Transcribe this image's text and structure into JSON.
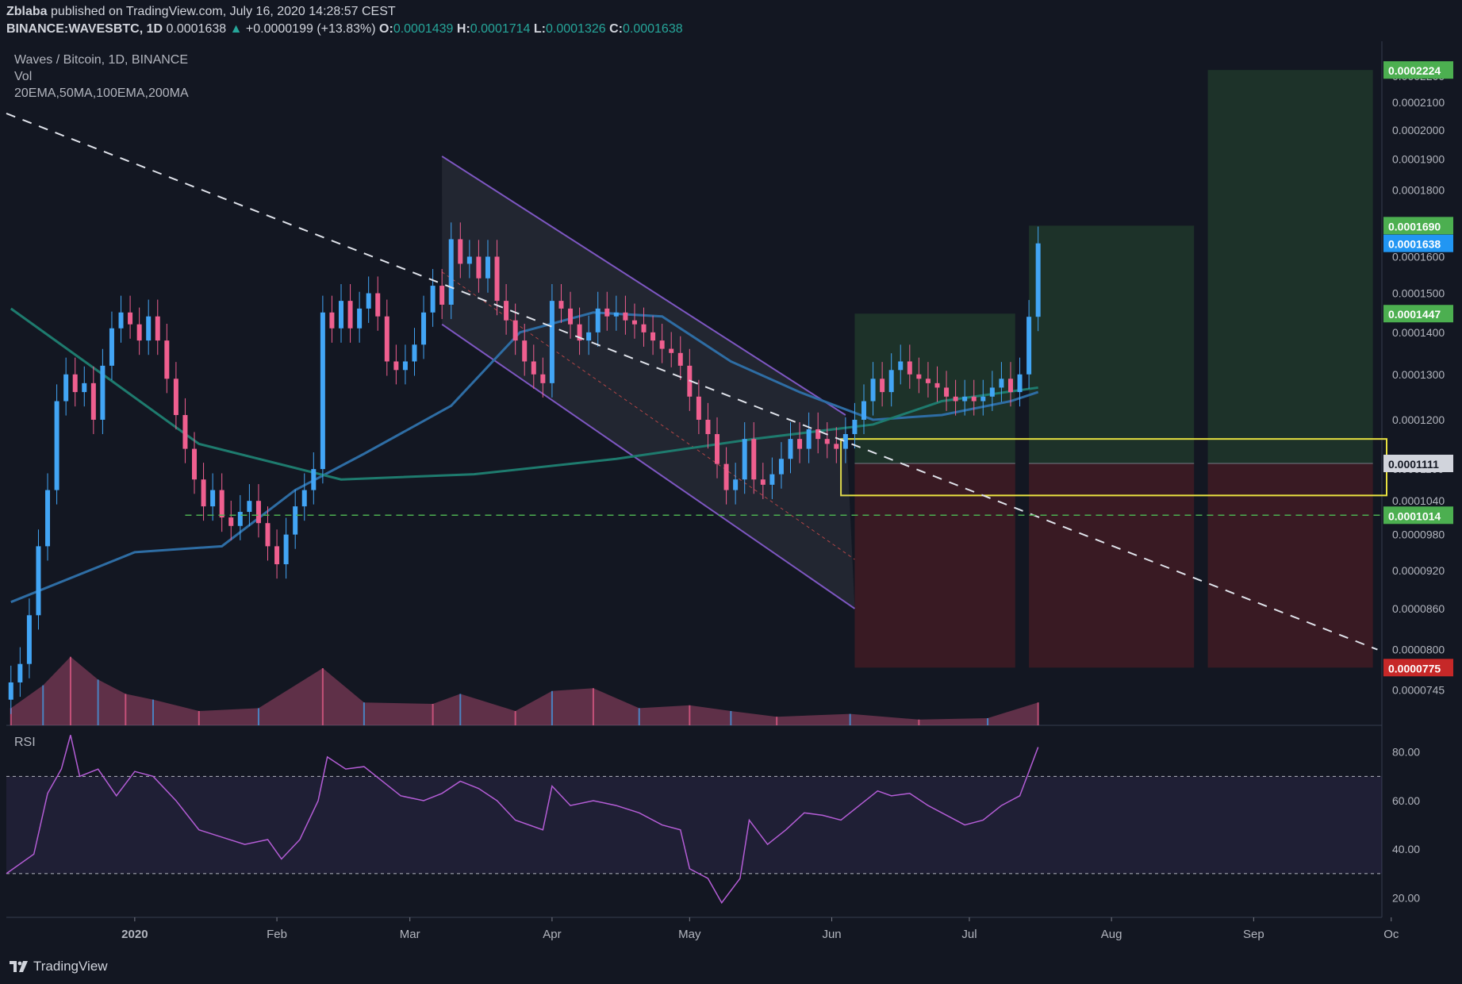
{
  "header": {
    "author": "Zblaba",
    "published": "published on TradingView.com, July 16, 2020 14:28:57 CEST",
    "symbol": "BINANCE:WAVESBTC, 1D",
    "last": "0.0001638",
    "arrow": "▲",
    "change": "+0.0000199 (+13.83%)",
    "o_label": "O:",
    "o_value": "0.0001439",
    "h_label": "H:",
    "h_value": "0.0001714",
    "l_label": "L:",
    "l_value": "0.0001326",
    "c_label": "C:",
    "c_value": "0.0001638"
  },
  "legend": {
    "title": "Waves / Bitcoin, 1D, BINANCE",
    "vol": "Vol",
    "ma": "20EMA,50MA,100EMA,200MA",
    "rsi": "RSI"
  },
  "footer": {
    "brand": "TradingView"
  },
  "colors": {
    "background": "#131722",
    "up": "#42a5f5",
    "down": "#ef5f8f",
    "ma_blue": "#2e6da4",
    "ma_teal": "#1e7b6e",
    "channel": "#7e57c2",
    "rsi": "#b45dd6",
    "zone": "#e9e240",
    "support": "#4caf50",
    "target_green": "#4caf50",
    "stop_red": "#c62828",
    "last_price": "#2196f3"
  },
  "chart_data": {
    "type": "candlestick",
    "symbol": "BINANCE:WAVESBTC",
    "interval": "1D",
    "x_range": [
      "2019-12-04",
      "2020-09-30"
    ],
    "ylim": [
      7e-05,
      0.000232
    ],
    "y_scale": "log",
    "y_ticks": [
      "0.0002200",
      "0.0002100",
      "0.0002000",
      "0.0001900",
      "0.0001800",
      "0.0001600",
      "0.0001500",
      "0.0001400",
      "0.0001300",
      "0.0001200",
      "0.0001100",
      "0.0001040",
      "0.0000980",
      "0.0000920",
      "0.0000860",
      "0.0000800",
      "0.0000745"
    ],
    "x_ticks": [
      {
        "date": "2020-01-01",
        "label": "2020"
      },
      {
        "date": "2020-02-01",
        "label": "Feb"
      },
      {
        "date": "2020-03-01",
        "label": "Mar"
      },
      {
        "date": "2020-04-01",
        "label": "Apr"
      },
      {
        "date": "2020-05-01",
        "label": "May"
      },
      {
        "date": "2020-06-01",
        "label": "Jun"
      },
      {
        "date": "2020-07-01",
        "label": "Jul"
      },
      {
        "date": "2020-08-01",
        "label": "Aug"
      },
      {
        "date": "2020-09-01",
        "label": "Sep"
      },
      {
        "date": "2020-10-01",
        "label": "Oc"
      }
    ],
    "candles": [
      {
        "date": "2019-12-05",
        "c": 7.55e-05
      },
      {
        "date": "2019-12-07",
        "c": 7.8e-05
      },
      {
        "date": "2019-12-09",
        "c": 8.5e-05
      },
      {
        "date": "2019-12-11",
        "c": 9.6e-05
      },
      {
        "date": "2019-12-13",
        "c": 0.000106
      },
      {
        "date": "2019-12-15",
        "c": 0.000124
      },
      {
        "date": "2019-12-17",
        "c": 0.00013
      },
      {
        "date": "2019-12-19",
        "c": 0.000126
      },
      {
        "date": "2019-12-21",
        "c": 0.000128
      },
      {
        "date": "2019-12-23",
        "c": 0.00012
      },
      {
        "date": "2019-12-25",
        "c": 0.000132
      },
      {
        "date": "2019-12-27",
        "c": 0.000141
      },
      {
        "date": "2019-12-29",
        "c": 0.000145
      },
      {
        "date": "2019-12-31",
        "c": 0.000142
      },
      {
        "date": "2020-01-02",
        "c": 0.000138
      },
      {
        "date": "2020-01-04",
        "c": 0.000144
      },
      {
        "date": "2020-01-06",
        "c": 0.000138
      },
      {
        "date": "2020-01-08",
        "c": 0.000129
      },
      {
        "date": "2020-01-10",
        "c": 0.000121
      },
      {
        "date": "2020-01-12",
        "c": 0.000114
      },
      {
        "date": "2020-01-14",
        "c": 0.000108
      },
      {
        "date": "2020-01-16",
        "c": 0.000103
      },
      {
        "date": "2020-01-18",
        "c": 0.000106
      },
      {
        "date": "2020-01-20",
        "c": 0.000101
      },
      {
        "date": "2020-01-22",
        "c": 9.95e-05
      },
      {
        "date": "2020-01-24",
        "c": 0.000102
      },
      {
        "date": "2020-01-26",
        "c": 0.000104
      },
      {
        "date": "2020-01-28",
        "c": 0.0001
      },
      {
        "date": "2020-01-30",
        "c": 9.6e-05
      },
      {
        "date": "2020-02-01",
        "c": 9.3e-05
      },
      {
        "date": "2020-02-03",
        "c": 9.8e-05
      },
      {
        "date": "2020-02-05",
        "c": 0.000103
      },
      {
        "date": "2020-02-07",
        "c": 0.000106
      },
      {
        "date": "2020-02-09",
        "c": 0.00011
      },
      {
        "date": "2020-02-11",
        "c": 0.000145
      },
      {
        "date": "2020-02-13",
        "c": 0.000141
      },
      {
        "date": "2020-02-15",
        "c": 0.000148
      },
      {
        "date": "2020-02-17",
        "c": 0.000141
      },
      {
        "date": "2020-02-19",
        "c": 0.000146
      },
      {
        "date": "2020-02-21",
        "c": 0.00015
      },
      {
        "date": "2020-02-23",
        "c": 0.000144
      },
      {
        "date": "2020-02-25",
        "c": 0.000133
      },
      {
        "date": "2020-02-27",
        "c": 0.000131
      },
      {
        "date": "2020-02-29",
        "c": 0.000133
      },
      {
        "date": "2020-03-02",
        "c": 0.000137
      },
      {
        "date": "2020-03-04",
        "c": 0.000145
      },
      {
        "date": "2020-03-06",
        "c": 0.000152
      },
      {
        "date": "2020-03-08",
        "c": 0.000147
      },
      {
        "date": "2020-03-10",
        "c": 0.000165
      },
      {
        "date": "2020-03-12",
        "c": 0.000158
      },
      {
        "date": "2020-03-14",
        "c": 0.00016
      },
      {
        "date": "2020-03-16",
        "c": 0.000154
      },
      {
        "date": "2020-03-18",
        "c": 0.00016
      },
      {
        "date": "2020-03-20",
        "c": 0.000148
      },
      {
        "date": "2020-03-22",
        "c": 0.000143
      },
      {
        "date": "2020-03-24",
        "c": 0.000138
      },
      {
        "date": "2020-03-26",
        "c": 0.000133
      },
      {
        "date": "2020-03-28",
        "c": 0.00013
      },
      {
        "date": "2020-03-30",
        "c": 0.000128
      },
      {
        "date": "2020-04-01",
        "c": 0.000148
      },
      {
        "date": "2020-04-03",
        "c": 0.000146
      },
      {
        "date": "2020-04-05",
        "c": 0.000142
      },
      {
        "date": "2020-04-07",
        "c": 0.000138
      },
      {
        "date": "2020-04-09",
        "c": 0.00014
      },
      {
        "date": "2020-04-11",
        "c": 0.000146
      },
      {
        "date": "2020-04-13",
        "c": 0.000144
      },
      {
        "date": "2020-04-15",
        "c": 0.000145
      },
      {
        "date": "2020-04-17",
        "c": 0.000143
      },
      {
        "date": "2020-04-19",
        "c": 0.000142
      },
      {
        "date": "2020-04-21",
        "c": 0.00014
      },
      {
        "date": "2020-04-23",
        "c": 0.000138
      },
      {
        "date": "2020-04-25",
        "c": 0.000136
      },
      {
        "date": "2020-04-27",
        "c": 0.000135
      },
      {
        "date": "2020-04-29",
        "c": 0.000132
      },
      {
        "date": "2020-05-01",
        "c": 0.000125
      },
      {
        "date": "2020-05-03",
        "c": 0.00012
      },
      {
        "date": "2020-05-05",
        "c": 0.000117
      },
      {
        "date": "2020-05-07",
        "c": 0.000111
      },
      {
        "date": "2020-05-09",
        "c": 0.000106
      },
      {
        "date": "2020-05-11",
        "c": 0.000108
      },
      {
        "date": "2020-05-13",
        "c": 0.000116
      },
      {
        "date": "2020-05-15",
        "c": 0.000108
      },
      {
        "date": "2020-05-17",
        "c": 0.000107
      },
      {
        "date": "2020-05-19",
        "c": 0.000109
      },
      {
        "date": "2020-05-21",
        "c": 0.000112
      },
      {
        "date": "2020-05-23",
        "c": 0.000116
      },
      {
        "date": "2020-05-25",
        "c": 0.000114
      },
      {
        "date": "2020-05-27",
        "c": 0.000118
      },
      {
        "date": "2020-05-29",
        "c": 0.000116
      },
      {
        "date": "2020-05-31",
        "c": 0.000115
      },
      {
        "date": "2020-06-02",
        "c": 0.000114
      },
      {
        "date": "2020-06-04",
        "c": 0.000117
      },
      {
        "date": "2020-06-06",
        "c": 0.00012
      },
      {
        "date": "2020-06-08",
        "c": 0.000124
      },
      {
        "date": "2020-06-10",
        "c": 0.000129
      },
      {
        "date": "2020-06-12",
        "c": 0.000126
      },
      {
        "date": "2020-06-14",
        "c": 0.000131
      },
      {
        "date": "2020-06-16",
        "c": 0.000133
      },
      {
        "date": "2020-06-18",
        "c": 0.00013
      },
      {
        "date": "2020-06-20",
        "c": 0.000129
      },
      {
        "date": "2020-06-22",
        "c": 0.000128
      },
      {
        "date": "2020-06-24",
        "c": 0.000127
      },
      {
        "date": "2020-06-26",
        "c": 0.000125
      },
      {
        "date": "2020-06-28",
        "c": 0.000124
      },
      {
        "date": "2020-06-30",
        "c": 0.000125
      },
      {
        "date": "2020-07-02",
        "c": 0.000124
      },
      {
        "date": "2020-07-04",
        "c": 0.000125
      },
      {
        "date": "2020-07-06",
        "c": 0.000127
      },
      {
        "date": "2020-07-08",
        "c": 0.000129
      },
      {
        "date": "2020-07-10",
        "c": 0.000126
      },
      {
        "date": "2020-07-12",
        "c": 0.00013
      },
      {
        "date": "2020-07-14",
        "c": 0.0001439
      },
      {
        "date": "2020-07-16",
        "c": 0.0001638
      }
    ],
    "moving_averages": [
      {
        "name": "50MA",
        "points": [
          [
            "2019-12-05",
            8.7e-05
          ],
          [
            "2020-01-01",
            9.5e-05
          ],
          [
            "2020-01-20",
            9.6e-05
          ],
          [
            "2020-02-05",
            0.000106
          ],
          [
            "2020-02-20",
            0.000113
          ],
          [
            "2020-03-10",
            0.000123
          ],
          [
            "2020-03-25",
            0.00014
          ],
          [
            "2020-04-10",
            0.000145
          ],
          [
            "2020-04-25",
            0.000144
          ],
          [
            "2020-05-10",
            0.000133
          ],
          [
            "2020-05-25",
            0.000126
          ],
          [
            "2020-06-10",
            0.00012
          ],
          [
            "2020-06-25",
            0.000121
          ],
          [
            "2020-07-10",
            0.000124
          ],
          [
            "2020-07-16",
            0.000126
          ]
        ]
      },
      {
        "name": "200MA",
        "points": [
          [
            "2019-12-05",
            0.000146
          ],
          [
            "2019-12-25",
            0.00013
          ],
          [
            "2020-01-15",
            0.000115
          ],
          [
            "2020-02-15",
            0.000108
          ],
          [
            "2020-03-15",
            0.000109
          ],
          [
            "2020-04-15",
            0.000112
          ],
          [
            "2020-05-15",
            0.000116
          ],
          [
            "2020-06-10",
            0.000119
          ],
          [
            "2020-06-25",
            0.000124
          ],
          [
            "2020-07-16",
            0.000127
          ]
        ]
      }
    ],
    "annotations": {
      "trendline": [
        [
          "2019-12-04",
          0.000206
        ],
        [
          "2020-09-28",
          8e-05
        ]
      ],
      "channel_upper": [
        [
          "2020-03-08",
          0.000191
        ],
        [
          "2020-06-04",
          0.000121
        ]
      ],
      "channel_lower": [
        [
          "2020-03-08",
          0.000142
        ],
        [
          "2020-06-06",
          8.6e-05
        ]
      ],
      "support_line": 0.0001014,
      "buy_zone": {
        "x": [
          "2020-06-03",
          "2020-09-30"
        ],
        "y": [
          0.000105,
          0.000116
        ]
      },
      "positions": [
        {
          "x": [
            "2020-06-06",
            "2020-07-11"
          ],
          "entry": 0.0001111,
          "target": 0.0001447,
          "stop": 7.75e-05
        },
        {
          "x": [
            "2020-07-14",
            "2020-08-19"
          ],
          "entry": 0.0001111,
          "target": 0.000169,
          "stop": 7.75e-05
        },
        {
          "x": [
            "2020-08-22",
            "2020-09-27"
          ],
          "entry": 0.0001111,
          "target": 0.0002224,
          "stop": 7.75e-05
        }
      ]
    },
    "price_labels": [
      {
        "value": 0.0002224,
        "text": "0.0002224",
        "color": "#4caf50"
      },
      {
        "value": 0.000169,
        "text": "0.0001690",
        "color": "#4caf50"
      },
      {
        "value": 0.0001638,
        "text": "0.0001638",
        "color": "#2196f3"
      },
      {
        "value": 0.0001447,
        "text": "0.0001447",
        "color": "#4caf50"
      },
      {
        "value": 0.0001111,
        "text": "0.0001111",
        "color": "#d1d4dc"
      },
      {
        "value": 0.0001014,
        "text": "0.0001014",
        "color": "#4caf50"
      },
      {
        "value": 7.75e-05,
        "text": "0.0000775",
        "color": "#c62828"
      }
    ],
    "rsi": {
      "ticks": [
        "80.00",
        "60.00",
        "40.00",
        "20.00"
      ],
      "ylim": [
        12,
        91
      ],
      "overbought": 70,
      "oversold": 30,
      "points": [
        [
          "2019-12-04",
          30
        ],
        [
          "2019-12-10",
          38
        ],
        [
          "2019-12-13",
          63
        ],
        [
          "2019-12-16",
          73
        ],
        [
          "2019-12-18",
          87
        ],
        [
          "2019-12-20",
          70
        ],
        [
          "2019-12-24",
          73
        ],
        [
          "2019-12-28",
          62
        ],
        [
          "2020-01-01",
          72
        ],
        [
          "2020-01-05",
          70
        ],
        [
          "2020-01-10",
          60
        ],
        [
          "2020-01-15",
          48
        ],
        [
          "2020-01-20",
          45
        ],
        [
          "2020-01-25",
          42
        ],
        [
          "2020-01-30",
          44
        ],
        [
          "2020-02-02",
          36
        ],
        [
          "2020-02-06",
          44
        ],
        [
          "2020-02-10",
          60
        ],
        [
          "2020-02-12",
          78
        ],
        [
          "2020-02-16",
          73
        ],
        [
          "2020-02-20",
          74
        ],
        [
          "2020-02-24",
          68
        ],
        [
          "2020-02-28",
          62
        ],
        [
          "2020-03-04",
          60
        ],
        [
          "2020-03-08",
          63
        ],
        [
          "2020-03-12",
          68
        ],
        [
          "2020-03-16",
          65
        ],
        [
          "2020-03-20",
          60
        ],
        [
          "2020-03-24",
          52
        ],
        [
          "2020-03-30",
          48
        ],
        [
          "2020-04-01",
          66
        ],
        [
          "2020-04-05",
          58
        ],
        [
          "2020-04-10",
          60
        ],
        [
          "2020-04-15",
          58
        ],
        [
          "2020-04-20",
          55
        ],
        [
          "2020-04-25",
          50
        ],
        [
          "2020-04-29",
          48
        ],
        [
          "2020-05-01",
          32
        ],
        [
          "2020-05-05",
          28
        ],
        [
          "2020-05-08",
          18
        ],
        [
          "2020-05-12",
          28
        ],
        [
          "2020-05-14",
          52
        ],
        [
          "2020-05-18",
          42
        ],
        [
          "2020-05-22",
          48
        ],
        [
          "2020-05-26",
          55
        ],
        [
          "2020-05-30",
          54
        ],
        [
          "2020-06-03",
          52
        ],
        [
          "2020-06-07",
          58
        ],
        [
          "2020-06-11",
          64
        ],
        [
          "2020-06-14",
          62
        ],
        [
          "2020-06-18",
          63
        ],
        [
          "2020-06-22",
          58
        ],
        [
          "2020-06-26",
          54
        ],
        [
          "2020-06-30",
          50
        ],
        [
          "2020-07-04",
          52
        ],
        [
          "2020-07-08",
          58
        ],
        [
          "2020-07-12",
          62
        ],
        [
          "2020-07-14",
          72
        ],
        [
          "2020-07-16",
          82
        ]
      ]
    },
    "volume_peaks": [
      [
        "2019-12-05",
        0.12
      ],
      [
        "2019-12-12",
        0.28
      ],
      [
        "2019-12-18",
        0.48
      ],
      [
        "2019-12-24",
        0.32
      ],
      [
        "2019-12-30",
        0.22
      ],
      [
        "2020-01-05",
        0.18
      ],
      [
        "2020-01-15",
        0.1
      ],
      [
        "2020-01-28",
        0.12
      ],
      [
        "2020-02-11",
        0.4
      ],
      [
        "2020-02-20",
        0.16
      ],
      [
        "2020-03-06",
        0.15
      ],
      [
        "2020-03-12",
        0.22
      ],
      [
        "2020-03-24",
        0.1
      ],
      [
        "2020-04-01",
        0.24
      ],
      [
        "2020-04-10",
        0.26
      ],
      [
        "2020-04-20",
        0.12
      ],
      [
        "2020-05-01",
        0.14
      ],
      [
        "2020-05-10",
        0.1
      ],
      [
        "2020-05-20",
        0.06
      ],
      [
        "2020-06-05",
        0.08
      ],
      [
        "2020-06-20",
        0.04
      ],
      [
        "2020-07-05",
        0.05
      ],
      [
        "2020-07-16",
        0.16
      ]
    ]
  }
}
